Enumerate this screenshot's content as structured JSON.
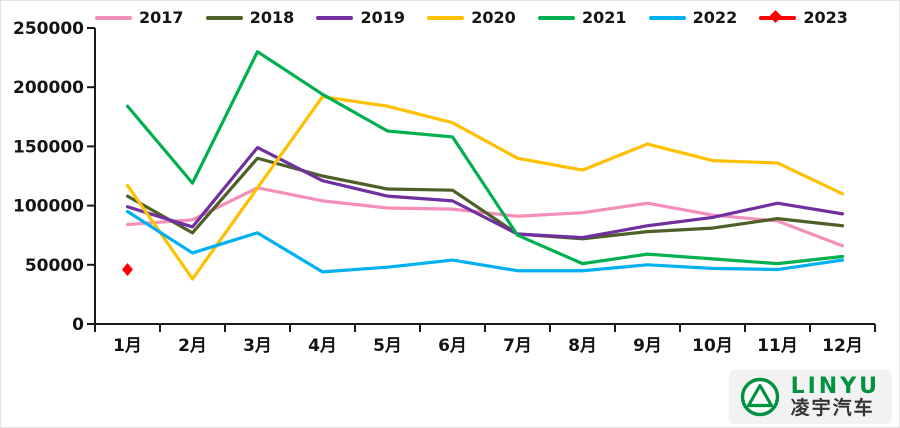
{
  "chart_data": {
    "type": "line",
    "title": "",
    "xlabel": "",
    "ylabel": "",
    "x": [
      "1月",
      "2月",
      "3月",
      "4月",
      "5月",
      "6月",
      "7月",
      "8月",
      "9月",
      "10月",
      "11月",
      "12月"
    ],
    "ylim": [
      0,
      250000
    ],
    "y_ticks": [
      0,
      50000,
      100000,
      150000,
      200000,
      250000
    ],
    "grid": false,
    "legend_position": "top",
    "series": [
      {
        "name": "2017",
        "color": "#F48FB9",
        "values": [
          84000,
          88000,
          115000,
          104000,
          98000,
          97000,
          91000,
          94000,
          102000,
          92000,
          87000,
          66000
        ]
      },
      {
        "name": "2018",
        "color": "#4E5F27",
        "values": [
          108000,
          77000,
          140000,
          125000,
          114000,
          113000,
          76000,
          72000,
          78000,
          81000,
          89000,
          83000
        ]
      },
      {
        "name": "2019",
        "color": "#7030A0",
        "values": [
          99000,
          82000,
          149000,
          121000,
          108000,
          104000,
          76000,
          73000,
          83000,
          90000,
          102000,
          93000
        ]
      },
      {
        "name": "2020",
        "color": "#FFC000",
        "values": [
          117000,
          38000,
          115000,
          192000,
          184000,
          170000,
          140000,
          130000,
          152000,
          138000,
          136000,
          110000
        ]
      },
      {
        "name": "2021",
        "color": "#00B050",
        "values": [
          184000,
          119000,
          230000,
          194000,
          163000,
          158000,
          75000,
          51000,
          59000,
          55000,
          51000,
          57000
        ]
      },
      {
        "name": "2022",
        "color": "#00B0F0",
        "values": [
          95000,
          60000,
          77000,
          44000,
          48000,
          54000,
          45000,
          45000,
          50000,
          47000,
          46000,
          54000
        ]
      },
      {
        "name": "2023",
        "color": "#FF0000",
        "marker": "diamond",
        "values": [
          46000
        ]
      }
    ],
    "axis_color": "#1a1a1a",
    "tick_label_color": "#141414"
  },
  "logo": {
    "brand": "LINYU",
    "subtitle": "凌宇汽车",
    "color": "#00923F"
  }
}
